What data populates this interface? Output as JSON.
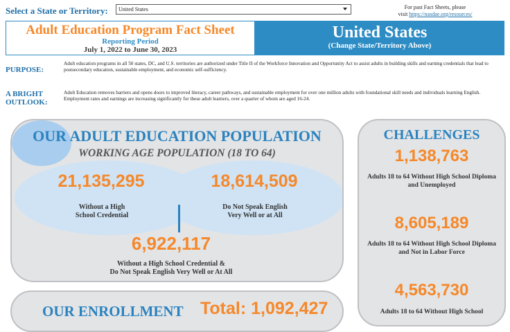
{
  "top": {
    "state_label": "Select a State or Territory:",
    "selected_state": "United States",
    "past_line1": "For past Fact Sheets, please",
    "past_line2": "visit ",
    "past_link": "https://nasdae.org/resources/"
  },
  "header": {
    "title": "Adult Education Program Fact Sheet",
    "reporting_period": "Reporting Period",
    "dates": "July 1, 2022 to June 30, 2023",
    "state": "United States",
    "change_hint": "(Change State/Territory Above)"
  },
  "purpose": {
    "label": "PURPOSE:",
    "text": "Adult education programs in all 50 states, DC, and U.S. territories are authorized under Title II of the Workforce Innovation and Opportunity Act to assist adults in building skills and earning credentials that lead to postsecondary education, sustainable employment, and economic self-sufficiency."
  },
  "outlook": {
    "label_line1": "A BRIGHT",
    "label_line2": "OUTLOOK:",
    "text": "Adult Education removes barriers and opens doors to improved literacy, career pathways, and sustainable employment for over one million adults with foundational skill needs and individuals learning English.  Employment rates and earnings are increasing significantly for these adult learners, over a quarter of whom are aged 16-24."
  },
  "population": {
    "title": "OUR ADULT EDUCATION POPULATION",
    "subtitle": "WORKING AGE POPULATION (18 TO 64)",
    "left_value": "21,135,295",
    "left_caption_1": "Without a High",
    "left_caption_2": "School Credential",
    "right_value": "18,614,509",
    "right_caption_1": "Do Not Speak English",
    "right_caption_2": "Very Well or at All",
    "both_value": "6,922,117",
    "both_caption_1": "Without a High School Credential &",
    "both_caption_2": "Do Not Speak English Very Well or At All"
  },
  "challenges": {
    "title": "CHALLENGES",
    "items": [
      {
        "value": "1,138,763",
        "caption": "Adults 18 to 64 Without High School Diploma and Unemployed"
      },
      {
        "value": "8,605,189",
        "caption": "Adults 18 to 64 Without High School Diploma and Not in Labor Force"
      },
      {
        "value": "4,563,730",
        "caption": "Adults 18 to 64 Without High School"
      }
    ]
  },
  "enrollment": {
    "title": "OUR ENROLLMENT",
    "total": "Total: 1,092,427"
  }
}
